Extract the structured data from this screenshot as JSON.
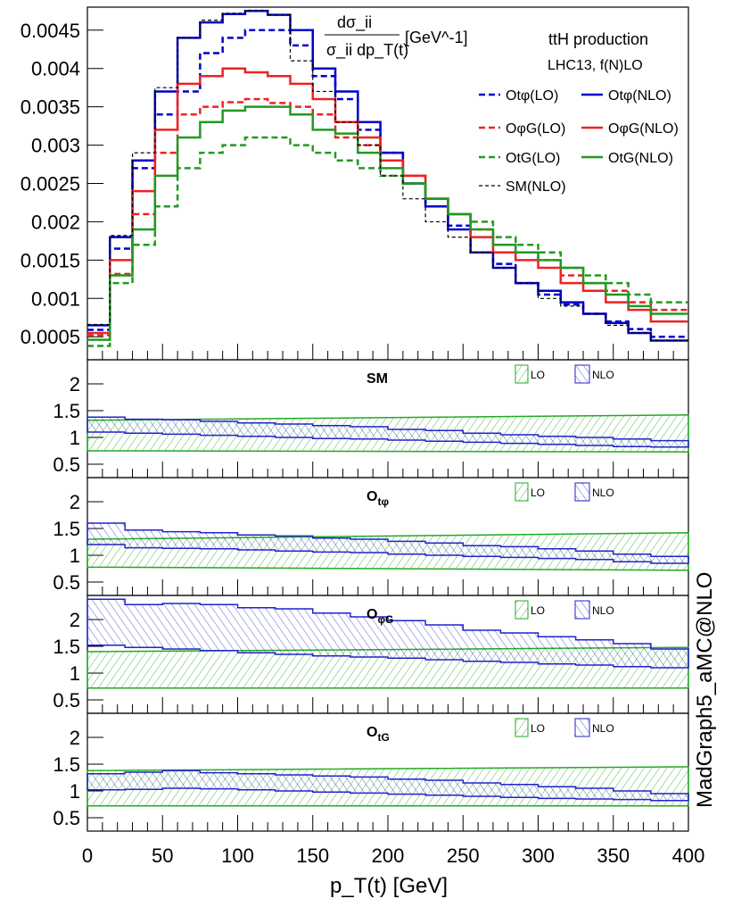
{
  "chart_data": {
    "type": "line",
    "title": "ttH production",
    "subtitle": "LHC13, f(N)LO",
    "ylabel_numerator": "dσ_ii",
    "ylabel_denominator": "σ_ii dp_T(t)",
    "ylabel_unit": "[GeV^-1]",
    "xlabel": "p_T(t) [GeV]",
    "xlim": [
      0,
      400
    ],
    "ylim": [
      0.0002,
      0.0048
    ],
    "x_ticks": [
      "0",
      "50",
      "100",
      "150",
      "200",
      "250",
      "300",
      "350",
      "400"
    ],
    "y_ticks": [
      "0.0005",
      "0.001",
      "0.0015",
      "0.002",
      "0.0025",
      "0.003",
      "0.0035",
      "0.004",
      "0.0045"
    ],
    "bin_edges": [
      0,
      15,
      30,
      45,
      60,
      75,
      90,
      105,
      120,
      135,
      150,
      165,
      180,
      195,
      210,
      225,
      240,
      255,
      270,
      285,
      300,
      315,
      330,
      345,
      360,
      375,
      400
    ],
    "series": [
      {
        "name": "Otφ(LO)",
        "color": "#0000cc",
        "dash": true,
        "values": [
          0.00059,
          0.00165,
          0.0027,
          0.0034,
          0.0037,
          0.0042,
          0.0044,
          0.0045,
          0.0045,
          0.0043,
          0.0039,
          0.0036,
          0.0032,
          0.0029,
          0.0025,
          0.0022,
          0.00195,
          0.0016,
          0.00145,
          0.0012,
          0.00105,
          0.00092,
          0.0008,
          0.0007,
          0.0006,
          0.0005
        ]
      },
      {
        "name": "Otφ(NLO)",
        "color": "#0000cc",
        "dash": false,
        "values": [
          0.00065,
          0.0018,
          0.0028,
          0.0037,
          0.0044,
          0.0046,
          0.00471,
          0.00475,
          0.0047,
          0.0045,
          0.004,
          0.0037,
          0.0033,
          0.0029,
          0.0025,
          0.0022,
          0.0019,
          0.0016,
          0.0014,
          0.0012,
          0.0011,
          0.00095,
          0.0008,
          0.00068,
          0.00055,
          0.00045
        ]
      },
      {
        "name": "OφG(LO)",
        "color": "#ee2222",
        "dash": true,
        "values": [
          0.00052,
          0.00132,
          0.0021,
          0.0029,
          0.0034,
          0.0035,
          0.00356,
          0.0036,
          0.00355,
          0.0035,
          0.0034,
          0.0031,
          0.003,
          0.0028,
          0.0026,
          0.0023,
          0.0021,
          0.0019,
          0.0017,
          0.0016,
          0.0015,
          0.0013,
          0.0012,
          0.0011,
          0.00095,
          0.00085
        ]
      },
      {
        "name": "OφG(NLO)",
        "color": "#ee2222",
        "dash": false,
        "values": [
          0.00055,
          0.0015,
          0.0024,
          0.0032,
          0.0038,
          0.0039,
          0.004,
          0.00395,
          0.0039,
          0.0038,
          0.0036,
          0.0033,
          0.0031,
          0.0028,
          0.0026,
          0.0023,
          0.0021,
          0.0018,
          0.0016,
          0.0015,
          0.0014,
          0.0012,
          0.0011,
          0.00095,
          0.00085,
          0.0007
        ]
      },
      {
        "name": "OtG(LO)",
        "color": "#229922",
        "dash": true,
        "values": [
          0.00038,
          0.0012,
          0.0017,
          0.0022,
          0.0027,
          0.0029,
          0.003,
          0.0031,
          0.0031,
          0.003,
          0.0029,
          0.0028,
          0.0027,
          0.0026,
          0.0025,
          0.0023,
          0.0021,
          0.002,
          0.0018,
          0.0017,
          0.0016,
          0.0014,
          0.0013,
          0.0012,
          0.00105,
          0.00095
        ]
      },
      {
        "name": "OtG(NLO)",
        "color": "#229922",
        "dash": false,
        "values": [
          0.00046,
          0.0013,
          0.0019,
          0.0026,
          0.0031,
          0.0033,
          0.00345,
          0.0035,
          0.0035,
          0.0034,
          0.0032,
          0.00315,
          0.0029,
          0.0027,
          0.0025,
          0.0023,
          0.0021,
          0.0019,
          0.0017,
          0.0016,
          0.0015,
          0.0014,
          0.0012,
          0.00105,
          0.0009,
          0.0008
        ]
      },
      {
        "name": "SM(NLO)",
        "color": "#000000",
        "dash": "fine",
        "values": [
          0.00066,
          0.00182,
          0.0029,
          0.00375,
          0.0044,
          0.00463,
          0.00472,
          0.00476,
          0.0047,
          0.0041,
          0.0037,
          0.0033,
          0.003,
          0.0026,
          0.0023,
          0.002,
          0.0018,
          0.0016,
          0.0014,
          0.0012,
          0.001,
          0.0009,
          0.0008,
          0.00065,
          0.00055,
          0.00045
        ]
      }
    ],
    "ratio_panels": [
      {
        "label": "SM",
        "sub": "",
        "lo_band": [
          [
            0.75,
            1.32
          ],
          [
            0.73,
            1.42
          ]
        ],
        "nlo_edges": [
          0,
          25,
          50,
          75,
          100,
          125,
          150,
          175,
          200,
          225,
          250,
          275,
          300,
          325,
          350,
          375,
          400
        ],
        "nlo_hi": [
          1.38,
          1.34,
          1.33,
          1.3,
          1.27,
          1.25,
          1.22,
          1.2,
          1.15,
          1.13,
          1.08,
          1.05,
          1.02,
          1.0,
          0.97,
          0.94
        ],
        "nlo_lo": [
          1.1,
          1.08,
          1.06,
          1.04,
          1.02,
          1.0,
          0.98,
          0.97,
          0.95,
          0.93,
          0.91,
          0.89,
          0.87,
          0.85,
          0.83,
          0.82
        ]
      },
      {
        "label": "O",
        "sub": "tφ",
        "lo_band": [
          [
            0.78,
            1.3
          ],
          [
            0.72,
            1.42
          ]
        ],
        "nlo_edges": [
          0,
          25,
          50,
          75,
          100,
          125,
          150,
          175,
          200,
          225,
          250,
          275,
          300,
          325,
          350,
          375,
          400
        ],
        "nlo_hi": [
          1.6,
          1.47,
          1.44,
          1.42,
          1.38,
          1.36,
          1.32,
          1.3,
          1.26,
          1.23,
          1.18,
          1.16,
          1.12,
          1.08,
          1.02,
          0.98
        ],
        "nlo_lo": [
          1.2,
          1.14,
          1.13,
          1.12,
          1.1,
          1.08,
          1.06,
          1.05,
          1.02,
          1.0,
          0.98,
          0.96,
          0.94,
          0.92,
          0.88,
          0.85
        ]
      },
      {
        "label": "O",
        "sub": "φG",
        "lo_band": [
          [
            0.72,
            1.4
          ],
          [
            0.72,
            1.48
          ]
        ],
        "nlo_edges": [
          0,
          25,
          50,
          75,
          100,
          125,
          150,
          175,
          200,
          225,
          250,
          275,
          300,
          325,
          350,
          375,
          400
        ],
        "nlo_hi": [
          2.38,
          2.28,
          2.3,
          2.28,
          2.22,
          2.2,
          2.12,
          2.05,
          1.98,
          1.9,
          1.8,
          1.75,
          1.68,
          1.62,
          1.55,
          1.45
        ],
        "nlo_lo": [
          1.52,
          1.48,
          1.45,
          1.42,
          1.38,
          1.35,
          1.32,
          1.3,
          1.28,
          1.25,
          1.22,
          1.2,
          1.17,
          1.15,
          1.12,
          1.1
        ]
      },
      {
        "label": "O",
        "sub": "tG",
        "lo_band": [
          [
            0.72,
            1.38
          ],
          [
            0.72,
            1.45
          ]
        ],
        "nlo_edges": [
          0,
          25,
          50,
          75,
          100,
          125,
          150,
          175,
          200,
          225,
          250,
          275,
          300,
          325,
          350,
          375,
          400
        ],
        "nlo_hi": [
          1.32,
          1.35,
          1.38,
          1.34,
          1.32,
          1.3,
          1.28,
          1.26,
          1.22,
          1.2,
          1.15,
          1.12,
          1.08,
          1.05,
          1.0,
          0.95
        ],
        "nlo_lo": [
          1.02,
          1.03,
          1.05,
          1.04,
          1.02,
          1.0,
          0.98,
          0.96,
          0.94,
          0.92,
          0.9,
          0.88,
          0.86,
          0.85,
          0.84,
          0.82
        ]
      }
    ],
    "ratio_ylim": [
      0.25,
      2.45
    ],
    "ratio_yticks": [
      "0.5",
      "1",
      "1.5",
      "2"
    ],
    "ratio_legend": [
      "LO",
      "NLO"
    ],
    "watermark": "MadGraph5_aMC@NLO"
  }
}
